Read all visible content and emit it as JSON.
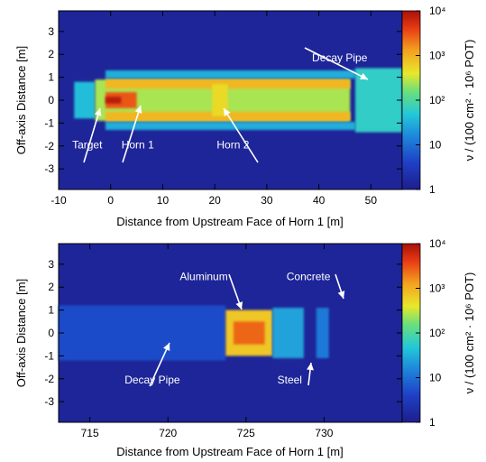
{
  "chart_data": [
    {
      "type": "heatmap",
      "xlabel": "Distance from Upstream Face of Horn 1 [m]",
      "ylabel": "Off-axis Distance [m]",
      "colorbar_label": "ν / (100 cm² · 10⁶ POT)",
      "xlim": [
        -10,
        56
      ],
      "ylim": [
        -3.9,
        3.9
      ],
      "x_ticks": [
        -10,
        0,
        10,
        20,
        30,
        40,
        50
      ],
      "x_tick_labels": [
        "-10",
        "0",
        "10",
        "20",
        "30",
        "40",
        "50"
      ],
      "y_ticks": [
        -3,
        -2,
        -1,
        0,
        1,
        2,
        3
      ],
      "y_tick_labels": [
        "-3",
        "-2",
        "-1",
        "0",
        "1",
        "2",
        "3"
      ],
      "colorbar_ticks": [
        1,
        10,
        100,
        1000,
        10000
      ],
      "colorbar_tick_labels": [
        "1",
        "10",
        "10²",
        "10³",
        "10⁴"
      ],
      "colorbar_range": [
        1,
        10000
      ],
      "colorbar_scale": "log",
      "regions": [
        {
          "x": [
            -7,
            -3
          ],
          "y": [
            -0.8,
            0.8
          ],
          "value": 40
        },
        {
          "x": [
            -3,
            46
          ],
          "y": [
            -0.9,
            0.9
          ],
          "value": 250
        },
        {
          "x": [
            -1,
            46
          ],
          "y": [
            0.5,
            0.95
          ],
          "value": 900
        },
        {
          "x": [
            -1,
            46
          ],
          "y": [
            -0.95,
            -0.5
          ],
          "value": 900
        },
        {
          "x": [
            -1,
            47
          ],
          "y": [
            0.95,
            1.3
          ],
          "value": 30
        },
        {
          "x": [
            -1,
            47
          ],
          "y": [
            -1.3,
            -0.95
          ],
          "value": 30
        },
        {
          "x": [
            -1,
            5
          ],
          "y": [
            -0.35,
            0.35
          ],
          "value": 3000
        },
        {
          "x": [
            -1,
            2
          ],
          "y": [
            -0.15,
            0.15
          ],
          "value": 8000
        },
        {
          "x": [
            19.5,
            22.5
          ],
          "y": [
            -0.7,
            0.7
          ],
          "value": 500
        },
        {
          "x": [
            47,
            56
          ],
          "y": [
            -1.4,
            1.4
          ],
          "value": 60
        }
      ],
      "annotations": [
        {
          "text": "Decay Pipe",
          "x": 44,
          "y": 1.7
        },
        {
          "text": "Target",
          "x": -4.5,
          "y": -2.1
        },
        {
          "text": "Horn 1",
          "x": 5.2,
          "y": -2.1
        },
        {
          "text": "Horn 2",
          "x": 23.5,
          "y": -2.1
        }
      ]
    },
    {
      "type": "heatmap",
      "xlabel": "Distance from Upstream Face of Horn 1 [m]",
      "ylabel": "Off-axis Distance [m]",
      "colorbar_label": "ν / (100 cm² · 10⁶ POT)",
      "xlim": [
        713,
        735
      ],
      "ylim": [
        -3.9,
        3.9
      ],
      "x_ticks": [
        715,
        720,
        725,
        730
      ],
      "x_tick_labels": [
        "715",
        "720",
        "725",
        "730"
      ],
      "y_ticks": [
        -3,
        -2,
        -1,
        0,
        1,
        2,
        3
      ],
      "y_tick_labels": [
        "-3",
        "-2",
        "-1",
        "0",
        "1",
        "2",
        "3"
      ],
      "colorbar_ticks": [
        1,
        10,
        100,
        1000,
        10000
      ],
      "colorbar_tick_labels": [
        "1",
        "10",
        "10²",
        "10³",
        "10⁴"
      ],
      "colorbar_range": [
        1,
        10000
      ],
      "colorbar_scale": "log",
      "regions": [
        {
          "x": [
            713,
            723.7
          ],
          "y": [
            -1.2,
            1.2
          ],
          "value": 5
        },
        {
          "x": [
            723.7,
            726.7
          ],
          "y": [
            -1.0,
            1.0
          ],
          "value": 700
        },
        {
          "x": [
            724.2,
            726.2
          ],
          "y": [
            -0.5,
            0.5
          ],
          "value": 2500
        },
        {
          "x": [
            726.7,
            728.7
          ],
          "y": [
            -1.1,
            1.1
          ],
          "value": 25
        },
        {
          "x": [
            729.5,
            730.3
          ],
          "y": [
            -1.1,
            1.1
          ],
          "value": 12
        }
      ],
      "annotations": [
        {
          "text": "Aluminum",
          "x": 722.3,
          "y": 2.3
        },
        {
          "text": "Concrete",
          "x": 729.0,
          "y": 2.3
        },
        {
          "text": "Decay Pipe",
          "x": 719.0,
          "y": -2.2
        },
        {
          "text": "Steel",
          "x": 727.8,
          "y": -2.2
        }
      ]
    }
  ]
}
